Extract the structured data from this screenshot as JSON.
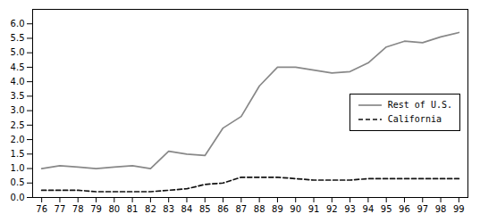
{
  "chart_data": {
    "type": "line",
    "x": [
      76,
      77,
      78,
      79,
      80,
      81,
      82,
      83,
      84,
      85,
      86,
      87,
      88,
      89,
      90,
      91,
      92,
      93,
      94,
      95,
      96,
      97,
      98,
      99
    ],
    "series": [
      {
        "name": "Rest of U.S.",
        "color": "#888888",
        "line_style": "solid",
        "values": [
          1.0,
          1.1,
          1.05,
          1.0,
          1.05,
          1.1,
          1.0,
          1.6,
          1.5,
          1.45,
          2.4,
          2.8,
          3.85,
          4.5,
          4.5,
          4.4,
          4.3,
          4.35,
          4.65,
          5.2,
          5.4,
          5.35,
          5.55,
          5.7
        ]
      },
      {
        "name": "California",
        "color": "#111111",
        "line_style": "dashed",
        "values": [
          0.25,
          0.25,
          0.25,
          0.2,
          0.2,
          0.2,
          0.2,
          0.25,
          0.3,
          0.45,
          0.5,
          0.7,
          0.7,
          0.7,
          0.65,
          0.6,
          0.6,
          0.6,
          0.65,
          0.65,
          0.65,
          0.65,
          0.65,
          0.65
        ]
      }
    ],
    "xlim": [
      75.5,
      99.5
    ],
    "xticks": [
      76,
      77,
      78,
      79,
      80,
      81,
      82,
      83,
      84,
      85,
      86,
      87,
      88,
      89,
      90,
      91,
      92,
      93,
      94,
      95,
      96,
      97,
      98,
      99
    ],
    "ylim": [
      0.0,
      6.5
    ],
    "yticks": [
      {
        "value": 0,
        "label": "0.0"
      },
      0.5,
      {
        "value": 1,
        "label": "1.0"
      },
      1.5,
      {
        "value": 2,
        "label": "2.0"
      },
      2.5,
      {
        "value": 3,
        "label": "3.0"
      },
      3.5,
      {
        "value": 4,
        "label": "4.0"
      },
      4.5,
      {
        "value": 5,
        "label": "5.0"
      },
      5.5,
      {
        "value": 6,
        "label": "6.0"
      }
    ],
    "grid": false,
    "legend": "right"
  }
}
